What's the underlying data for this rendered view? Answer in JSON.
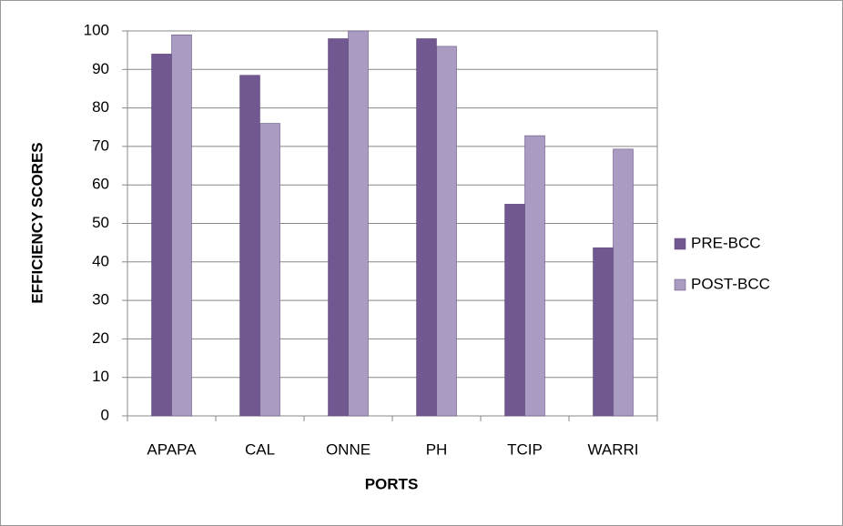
{
  "chart_data": {
    "type": "bar",
    "categories": [
      "APAPA",
      "CAL",
      "ONNE",
      "PH",
      "TCIP",
      "WARRI"
    ],
    "series": [
      {
        "name": "PRE-BCC",
        "color": "#725891",
        "values": [
          94,
          88.5,
          98,
          98,
          55,
          43.7
        ]
      },
      {
        "name": "POST-BCC",
        "color": "#a99bc1",
        "values": [
          99,
          76,
          100,
          96,
          72.8,
          69.3
        ]
      }
    ],
    "xlabel": "PORTS",
    "ylabel": "EFFICIENCY SCORES",
    "ylim": [
      0,
      100
    ],
    "yticks": [
      0,
      10,
      20,
      30,
      40,
      50,
      60,
      70,
      80,
      90,
      100
    ],
    "grid": true,
    "legend": "right"
  }
}
